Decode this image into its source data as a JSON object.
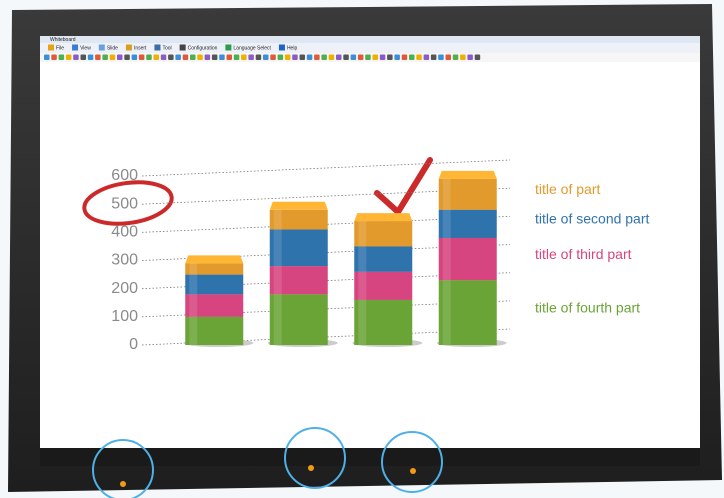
{
  "window_title": "Whiteboard",
  "menu": [
    "File",
    "View",
    "Slide",
    "Insert",
    "Tool",
    "Configuration",
    "Language Select",
    "Help"
  ],
  "chart_data": {
    "type": "stacked-bar",
    "categories": [
      null,
      null,
      null,
      null
    ],
    "series": [
      {
        "name": "title of fourth part",
        "color": "#6aa436",
        "values": [
          100,
          180,
          160,
          230
        ]
      },
      {
        "name": "title of third part",
        "color": "#d6457f",
        "values": [
          80,
          100,
          100,
          150
        ]
      },
      {
        "name": "title of second part",
        "color": "#2f73ad",
        "values": [
          70,
          130,
          90,
          100
        ]
      },
      {
        "name": "title of part",
        "color": "#e29a2c",
        "values": [
          40,
          70,
          90,
          110
        ]
      }
    ],
    "ylim": [
      0,
      600
    ],
    "yticks": [
      0,
      100,
      200,
      300,
      400,
      500,
      600
    ],
    "grid": true
  }
}
